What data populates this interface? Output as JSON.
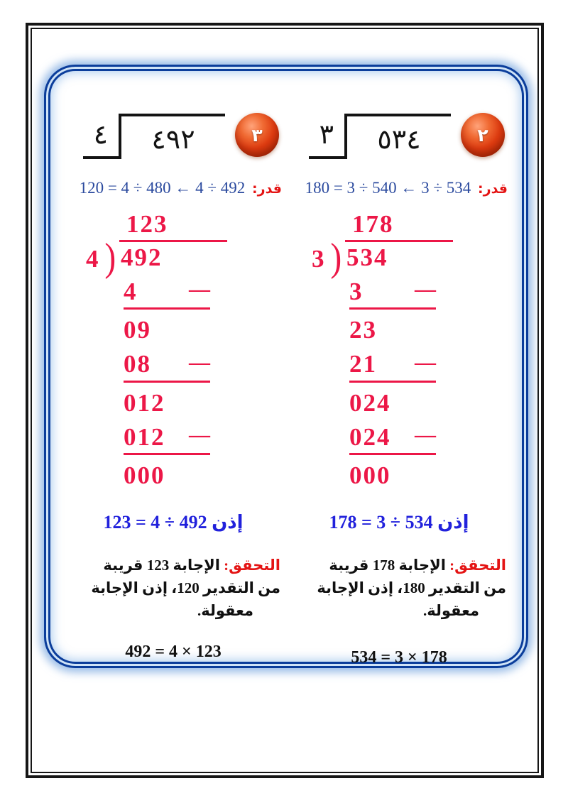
{
  "page": {
    "border_color": "#161616",
    "frame_color": "#0b3d9b",
    "work_color": "#ec1747",
    "estimate_color": "#2b4a9e",
    "label_color": "#e41414",
    "conclusion_color": "#2121dc"
  },
  "problems": [
    {
      "badge_number": "٢",
      "figure_divisor": "٣",
      "figure_dividend": "٥٣٤",
      "estimate_label": "قدر:",
      "estimate_expression": "534 ÷ 3 ← 540 ÷ 3 = 180",
      "work": {
        "quotient": "178",
        "divisor": "3",
        "bracket": ")",
        "dividend": "534",
        "dash": "—",
        "steps": [
          {
            "text": "3"
          },
          {
            "text": "23"
          },
          {
            "text": "21"
          },
          {
            "text": "024"
          },
          {
            "text": "024"
          },
          {
            "text": "000"
          }
        ]
      },
      "conclusion": "إذن 534 ÷ 3 = 178",
      "check_label": "التحقق:",
      "check_line1": "الإجابة 178 قريبة",
      "check_line2": "من التقدير 180، إذن الإجابة",
      "check_line3": "معقولة.",
      "equation": "178 × 3 = 534"
    },
    {
      "badge_number": "٣",
      "figure_divisor": "٤",
      "figure_dividend": "٤٩٢",
      "estimate_label": "قدر:",
      "estimate_expression": "492 ÷ 4 ← 480 ÷ 4 = 120",
      "work": {
        "quotient": "123",
        "divisor": "4",
        "bracket": ")",
        "dividend": "492",
        "dash": "—",
        "steps": [
          {
            "text": "4"
          },
          {
            "text": "09"
          },
          {
            "text": "08"
          },
          {
            "text": "012"
          },
          {
            "text": "012"
          },
          {
            "text": "000"
          }
        ]
      },
      "conclusion": "إذن 492 ÷ 4 = 123",
      "check_label": "التحقق:",
      "check_line1": "الإجابة 123 قريبة",
      "check_line2": "من التقدير 120، إذن الإجابة",
      "check_line3": "معقولة.",
      "equation": "123 × 4 = 492"
    }
  ]
}
